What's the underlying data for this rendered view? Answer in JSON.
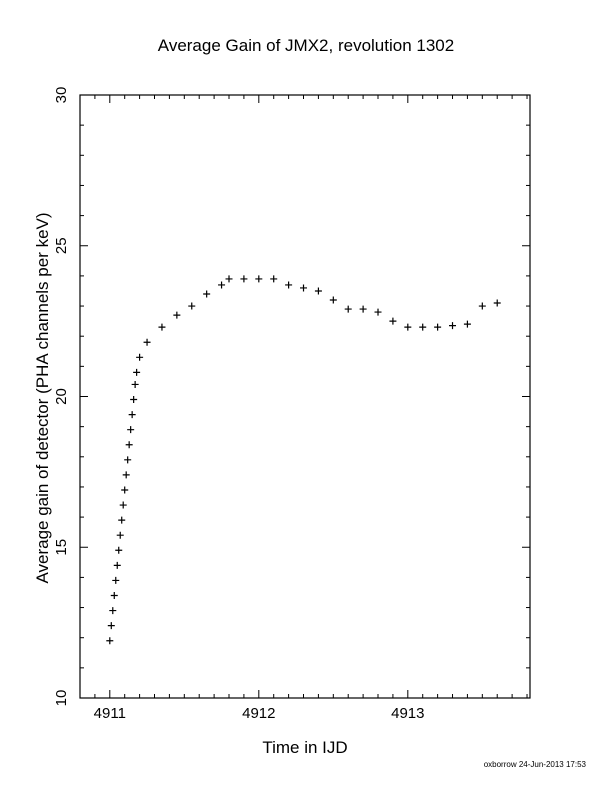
{
  "chart_data": {
    "type": "scatter",
    "title": "Average Gain of JMX2, revolution 1302",
    "xlabel": "Time in IJD",
    "ylabel": "Average gain of detector (PHA channels per keV)",
    "xlim": [
      4910.8,
      4913.82
    ],
    "ylim": [
      10,
      30
    ],
    "xticks": [
      4911,
      4912,
      4913
    ],
    "yticks": [
      10,
      15,
      20,
      25,
      30
    ],
    "x_tick_labels": [
      "4911",
      "4912",
      "4913"
    ],
    "y_tick_labels": [
      "10",
      "15",
      "20",
      "25",
      "30"
    ],
    "marker": "+",
    "color": "#000000",
    "grid": false,
    "series": [
      {
        "points": [
          [
            4911.0,
            11.9
          ],
          [
            4911.01,
            12.4
          ],
          [
            4911.02,
            12.9
          ],
          [
            4911.03,
            13.4
          ],
          [
            4911.04,
            13.9
          ],
          [
            4911.05,
            14.4
          ],
          [
            4911.06,
            14.9
          ],
          [
            4911.07,
            15.4
          ],
          [
            4911.08,
            15.9
          ],
          [
            4911.09,
            16.4
          ],
          [
            4911.1,
            16.9
          ],
          [
            4911.11,
            17.4
          ],
          [
            4911.12,
            17.9
          ],
          [
            4911.13,
            18.4
          ],
          [
            4911.14,
            18.9
          ],
          [
            4911.15,
            19.4
          ],
          [
            4911.16,
            19.9
          ],
          [
            4911.17,
            20.4
          ],
          [
            4911.18,
            20.8
          ],
          [
            4911.2,
            21.3
          ],
          [
            4911.25,
            21.8
          ],
          [
            4911.35,
            22.3
          ],
          [
            4911.45,
            22.7
          ],
          [
            4911.55,
            23.0
          ],
          [
            4911.65,
            23.4
          ],
          [
            4911.75,
            23.7
          ],
          [
            4911.8,
            23.9
          ],
          [
            4911.9,
            23.9
          ],
          [
            4912.0,
            23.9
          ],
          [
            4912.1,
            23.9
          ],
          [
            4912.2,
            23.7
          ],
          [
            4912.3,
            23.6
          ],
          [
            4912.4,
            23.5
          ],
          [
            4912.5,
            23.2
          ],
          [
            4912.6,
            22.9
          ],
          [
            4912.7,
            22.9
          ],
          [
            4912.8,
            22.8
          ],
          [
            4912.9,
            22.5
          ],
          [
            4913.0,
            22.3
          ],
          [
            4913.1,
            22.3
          ],
          [
            4913.2,
            22.3
          ],
          [
            4913.3,
            22.35
          ],
          [
            4913.4,
            22.4
          ],
          [
            4913.5,
            23.0
          ],
          [
            4913.6,
            23.1
          ]
        ]
      }
    ]
  },
  "footer": "oxborrow 24-Jun-2013 17:53"
}
